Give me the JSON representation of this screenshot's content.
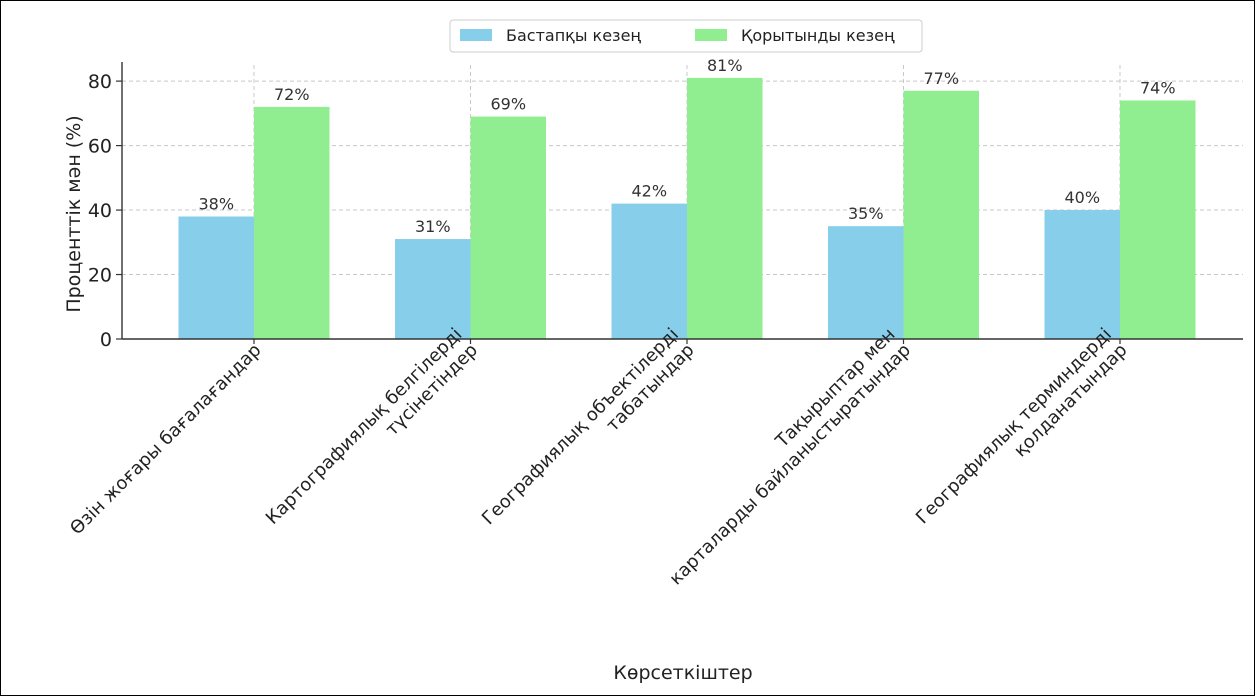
{
  "chart_data": {
    "type": "bar",
    "title": "",
    "xlabel": "Көрсеткіштер",
    "ylabel": "Проценттік мән (%)",
    "ylim": [
      0,
      85
    ],
    "yticks": [
      0,
      20,
      40,
      60,
      80
    ],
    "grid": true,
    "legend_position": "top-center",
    "categories": [
      [
        "Өзін жоғары бағалағандар"
      ],
      [
        "Картографиялық белгілерді",
        "түсінетіндер"
      ],
      [
        "Географиялық объектілерді",
        "табатындар"
      ],
      [
        "Тақырыптар мен",
        "карталарды байланыстыратындар"
      ],
      [
        "Географиялық терминдерді",
        "қолданатындар"
      ]
    ],
    "series": [
      {
        "name": "Бастапқы кезең",
        "color": "#87CEEB",
        "values": [
          38,
          31,
          42,
          35,
          40
        ],
        "labels": [
          "38%",
          "31%",
          "42%",
          "35%",
          "40%"
        ]
      },
      {
        "name": "Қорытынды кезең",
        "color": "#90EE90",
        "values": [
          72,
          69,
          81,
          77,
          74
        ],
        "labels": [
          "72%",
          "69%",
          "81%",
          "77%",
          "74%"
        ]
      }
    ]
  }
}
